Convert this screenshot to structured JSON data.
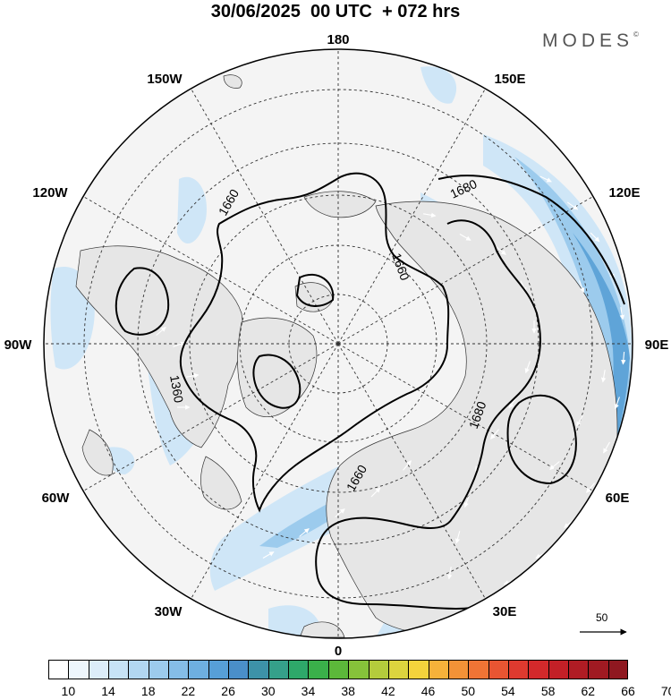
{
  "title": "30/06/2025  00 UTC  + 072 hrs",
  "brand": "MODES",
  "brand_mark": "©",
  "map": {
    "projection": "north-polar-stereographic",
    "longitude_labels": [
      "180",
      "150E",
      "120E",
      "90E",
      "60E",
      "30E",
      "0",
      "30W",
      "60W",
      "90W",
      "120W",
      "150W"
    ],
    "contour_labels": [
      "1660",
      "1680",
      "1660",
      "1360",
      "1680",
      "1660"
    ],
    "fill_colors": {
      "land": "#e6e6e6",
      "ocean": "#f4f4f4",
      "wind_light": "#cfe6f7",
      "wind_mid": "#9ccbed",
      "wind_strong": "#5fa4d8",
      "wind_core": "#3f85c6"
    },
    "vector_scale_label": "50"
  },
  "colorbar": {
    "colors": [
      "#ffffff",
      "#eef6fc",
      "#dcedf9",
      "#c7e3f6",
      "#b2d7f1",
      "#9ccbed",
      "#85bde7",
      "#6eafe0",
      "#579fd7",
      "#4a8fc9",
      "#3d92a8",
      "#35a08a",
      "#2ea86a",
      "#3ab04a",
      "#5cb83a",
      "#86c23a",
      "#b4cc3c",
      "#dcd43e",
      "#f4d33c",
      "#f6b23a",
      "#f39237",
      "#ef7435",
      "#e85532",
      "#de3a2f",
      "#d3292b",
      "#c32027",
      "#b01c24",
      "#a01a22",
      "#8f1820"
    ],
    "tick_labels": [
      "10",
      "14",
      "18",
      "22",
      "26",
      "30",
      "34",
      "38",
      "42",
      "46",
      "50",
      "54",
      "58",
      "62",
      "66",
      "70"
    ]
  }
}
